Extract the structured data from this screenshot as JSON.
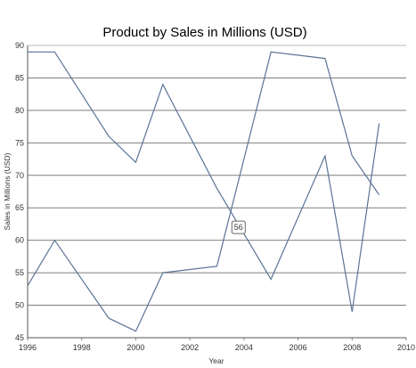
{
  "chart_data": {
    "type": "line",
    "title": "Product by Sales in Millions (USD)",
    "xlabel": "Year",
    "ylabel": "Sales in Millions (USD)",
    "xlim": [
      1996,
      2010
    ],
    "ylim": [
      45,
      90
    ],
    "x_ticks": [
      1996,
      1998,
      2000,
      2002,
      2004,
      2006,
      2008,
      2010
    ],
    "y_ticks": [
      45,
      50,
      55,
      60,
      65,
      70,
      75,
      80,
      85,
      90
    ],
    "grid": true,
    "series": [
      {
        "color": "#5b7396",
        "x": [
          1996,
          1997,
          1999,
          2000,
          2001,
          2003,
          2005,
          2007,
          2008,
          2009
        ],
        "values": [
          89,
          89,
          76,
          72,
          84,
          68,
          54,
          73,
          49,
          78
        ]
      },
      {
        "color": "#5b7396",
        "x": [
          1996,
          1997,
          1999,
          2000,
          2001,
          2003,
          2005,
          2007,
          2008,
          2009
        ],
        "values": [
          53,
          60,
          48,
          46,
          55,
          56,
          89,
          88,
          73,
          67
        ]
      }
    ],
    "tooltip": {
      "label": "56",
      "x": 2003.8,
      "y": 62
    }
  }
}
